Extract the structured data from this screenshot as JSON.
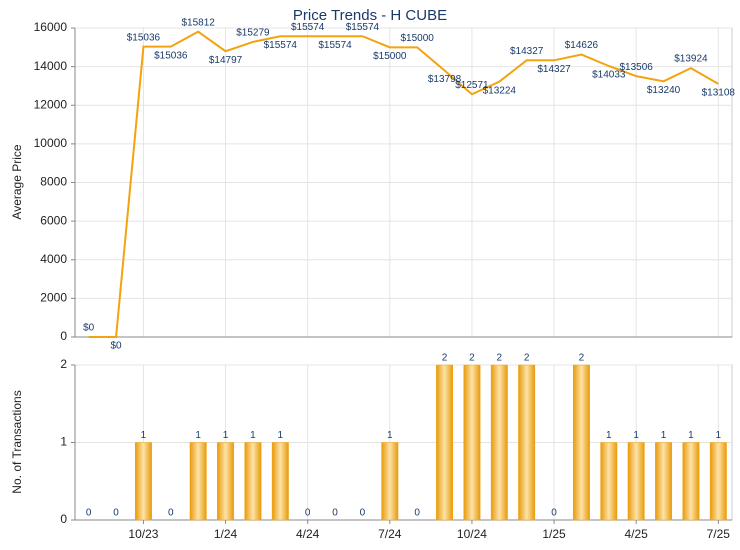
{
  "chart_data": [
    {
      "type": "line",
      "title": "Price Trends - H CUBE",
      "ylabel": "Average Price",
      "color": "#f2a30f",
      "values": [
        0,
        0,
        15036,
        15036,
        15812,
        14797,
        15279,
        15574,
        15574,
        15574,
        15574,
        15000,
        15000,
        13798,
        12571,
        13224,
        14327,
        14327,
        14626,
        14033,
        13506,
        13240,
        13924,
        13108
      ],
      "value_labels": [
        "$0",
        "$0",
        "$15036",
        "$15036",
        "$15812",
        "$14797",
        "$15279",
        "$15574",
        "$15574",
        "$15574",
        "$15574",
        "$15000",
        "$15000",
        "$13798",
        "$12571",
        "$13224",
        "$14327",
        "$14327",
        "$14626",
        "$14033",
        "$13506",
        "$13240",
        "$13924",
        "$13108"
      ],
      "ylim": [
        0,
        16000
      ],
      "yticks": [
        0,
        2000,
        4000,
        6000,
        8000,
        10000,
        12000,
        14000,
        16000
      ],
      "grid": true
    },
    {
      "type": "bar",
      "ylabel": "No. of Transactions",
      "color": "#f2a30f",
      "categories": [
        null,
        null,
        "10/23",
        null,
        null,
        "1/24",
        null,
        null,
        "4/24",
        null,
        null,
        "7/24",
        null,
        null,
        "10/24",
        null,
        null,
        "1/25",
        null,
        null,
        "4/25",
        null,
        null,
        "7/25"
      ],
      "values": [
        0,
        0,
        1,
        0,
        1,
        1,
        1,
        1,
        0,
        0,
        0,
        1,
        0,
        2,
        2,
        2,
        2,
        0,
        2,
        1,
        1,
        1,
        1,
        1
      ],
      "ylim": [
        0,
        2
      ],
      "yticks": [
        0,
        1,
        2
      ],
      "grid": true
    }
  ]
}
